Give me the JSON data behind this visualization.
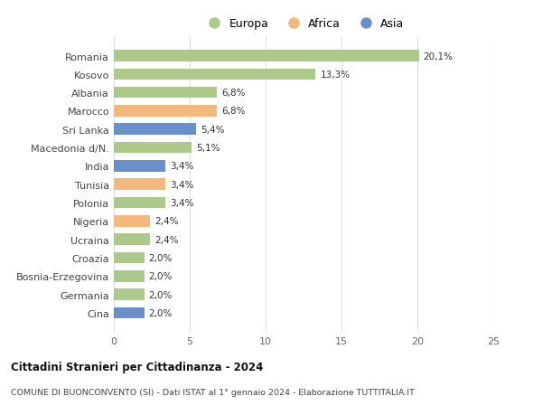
{
  "categories": [
    "Romania",
    "Kosovo",
    "Albania",
    "Marocco",
    "Sri Lanka",
    "Macedonia d/N.",
    "India",
    "Tunisia",
    "Polonia",
    "Nigeria",
    "Ucraina",
    "Croazia",
    "Bosnia-Erzegovina",
    "Germania",
    "Cina"
  ],
  "values": [
    20.1,
    13.3,
    6.8,
    6.8,
    5.4,
    5.1,
    3.4,
    3.4,
    3.4,
    2.4,
    2.4,
    2.0,
    2.0,
    2.0,
    2.0
  ],
  "labels": [
    "20,1%",
    "13,3%",
    "6,8%",
    "6,8%",
    "5,4%",
    "5,1%",
    "3,4%",
    "3,4%",
    "3,4%",
    "2,4%",
    "2,4%",
    "2,0%",
    "2,0%",
    "2,0%",
    "2,0%"
  ],
  "continents": [
    "Europa",
    "Europa",
    "Europa",
    "Africa",
    "Asia",
    "Europa",
    "Asia",
    "Africa",
    "Europa",
    "Africa",
    "Europa",
    "Europa",
    "Europa",
    "Europa",
    "Asia"
  ],
  "colors": {
    "Europa": "#adc98a",
    "Africa": "#f2b87e",
    "Asia": "#6b8fc9"
  },
  "title": "Cittadini Stranieri per Cittadinanza - 2024",
  "subtitle": "COMUNE DI BUONCONVENTO (SI) - Dati ISTAT al 1° gennaio 2024 - Elaborazione TUTTITALIA.IT",
  "xlim": [
    0,
    25
  ],
  "xticks": [
    0,
    5,
    10,
    15,
    20,
    25
  ],
  "background_color": "#ffffff",
  "plot_bg_color": "#ffffff"
}
